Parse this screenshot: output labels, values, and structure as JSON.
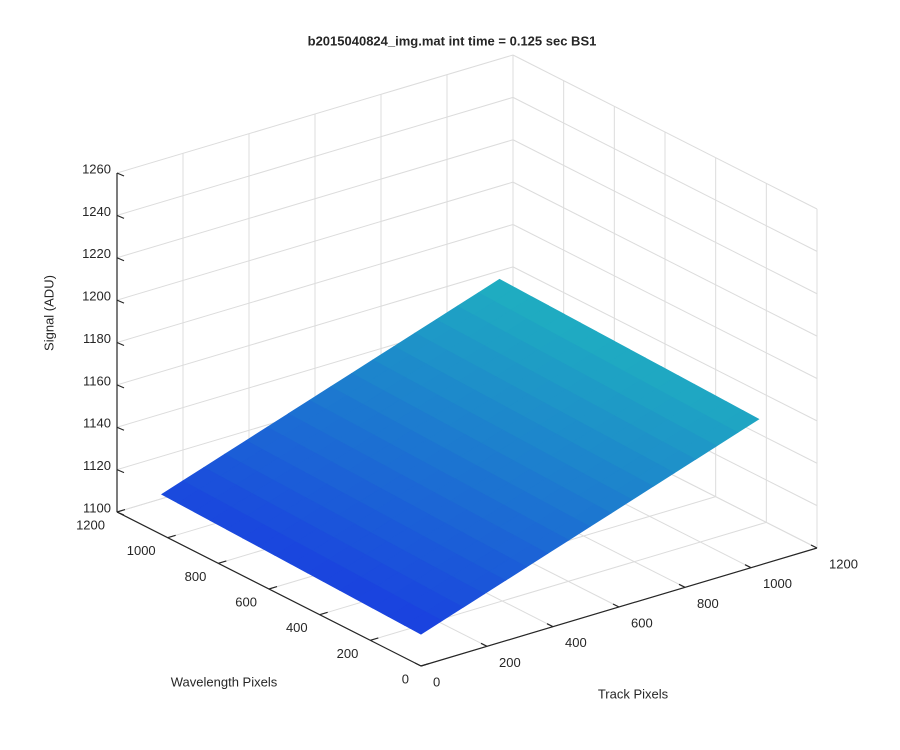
{
  "chart_data": {
    "type": "surface",
    "title": "b2015040824_img.mat int time = 0.125 sec   BS1",
    "xlabel": "Track Pixels",
    "ylabel": "Wavelength Pixels",
    "zlabel": "Signal (ADU)",
    "x": [
      0,
      512,
      1024
    ],
    "y": [
      0,
      512,
      1024
    ],
    "z": [
      [
        1115,
        1142,
        1169
      ],
      [
        1117,
        1144,
        1171
      ],
      [
        1119,
        1146,
        1173
      ]
    ],
    "xlim": [
      0,
      1200
    ],
    "ylim": [
      0,
      1200
    ],
    "zlim": [
      1100,
      1260
    ],
    "xticks": [
      0,
      200,
      400,
      600,
      800,
      1000,
      1200
    ],
    "yticks": [
      0,
      200,
      400,
      600,
      800,
      1000,
      1200
    ],
    "zticks": [
      1100,
      1120,
      1140,
      1160,
      1180,
      1200,
      1220,
      1240,
      1260
    ],
    "grid": true,
    "colormap": [
      "#1a3fe0",
      "#1fb0c0"
    ]
  }
}
